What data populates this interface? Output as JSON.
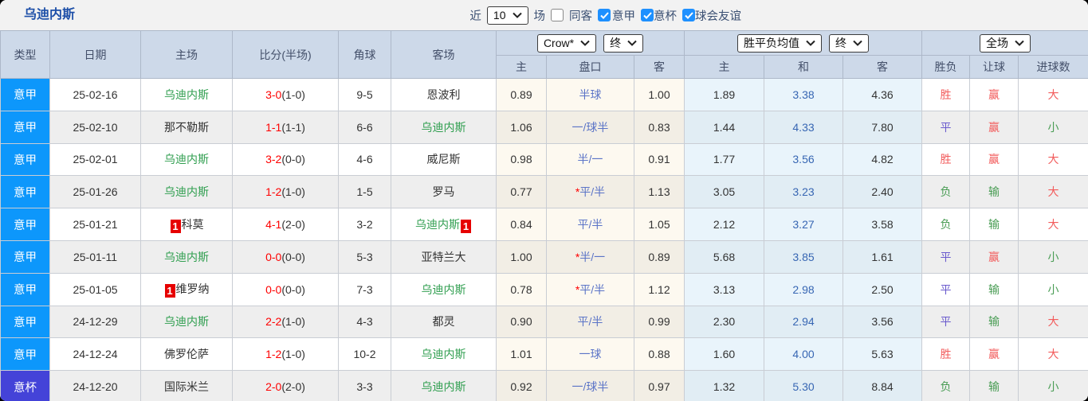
{
  "topbar": {
    "title": "乌迪内斯",
    "filter": {
      "recent_label": "近",
      "recent_value": "10",
      "matches_label": "场",
      "same_away_label": "同客",
      "same_away_checked": false,
      "leagues": [
        {
          "label": "意甲",
          "checked": true
        },
        {
          "label": "意杯",
          "checked": true
        },
        {
          "label": "球会友谊",
          "checked": true
        }
      ]
    }
  },
  "table": {
    "columns": {
      "type": "类型",
      "date": "日期",
      "home": "主场",
      "score": "比分(半场)",
      "corner": "角球",
      "away": "客场"
    },
    "odds_group": {
      "company_select": "Crow*",
      "state_select": "终",
      "sub": [
        "主",
        "盘口",
        "客"
      ]
    },
    "avg_group": {
      "select": "胜平负均值",
      "state_select": "终",
      "sub": [
        "主",
        "和",
        "客"
      ]
    },
    "result_group": {
      "select": "全场",
      "sub": [
        "胜负",
        "让球",
        "进球数"
      ]
    },
    "rows": [
      {
        "type": "意甲",
        "style": "league",
        "date": "25-02-16",
        "home": {
          "name": "乌迪内斯",
          "target": true
        },
        "score": {
          "full": "3-0",
          "half": "(1-0)"
        },
        "corner": "9-5",
        "away": {
          "name": "恩波利",
          "target": false
        },
        "odds": {
          "home": "0.89",
          "handicap": "半球",
          "star": false,
          "away": "1.00"
        },
        "avg": {
          "home": "1.89",
          "draw": "3.38",
          "away": "4.36"
        },
        "results": [
          {
            "text": "胜",
            "tone": "red"
          },
          {
            "text": "赢",
            "tone": "red"
          },
          {
            "text": "大",
            "tone": "red"
          }
        ]
      },
      {
        "type": "意甲",
        "style": "league",
        "date": "25-02-10",
        "home": {
          "name": "那不勒斯",
          "target": false
        },
        "score": {
          "full": "1-1",
          "half": "(1-1)"
        },
        "corner": "6-6",
        "away": {
          "name": "乌迪内斯",
          "target": true
        },
        "odds": {
          "home": "1.06",
          "handicap": "一/球半",
          "star": false,
          "away": "0.83"
        },
        "avg": {
          "home": "1.44",
          "draw": "4.33",
          "away": "7.80"
        },
        "results": [
          {
            "text": "平",
            "tone": "purple"
          },
          {
            "text": "赢",
            "tone": "red"
          },
          {
            "text": "小",
            "tone": "green"
          }
        ]
      },
      {
        "type": "意甲",
        "style": "league",
        "date": "25-02-01",
        "home": {
          "name": "乌迪内斯",
          "target": true
        },
        "score": {
          "full": "3-2",
          "half": "(0-0)"
        },
        "corner": "4-6",
        "away": {
          "name": "威尼斯",
          "target": false
        },
        "odds": {
          "home": "0.98",
          "handicap": "半/一",
          "star": false,
          "away": "0.91"
        },
        "avg": {
          "home": "1.77",
          "draw": "3.56",
          "away": "4.82"
        },
        "results": [
          {
            "text": "胜",
            "tone": "red"
          },
          {
            "text": "赢",
            "tone": "red"
          },
          {
            "text": "大",
            "tone": "red"
          }
        ]
      },
      {
        "type": "意甲",
        "style": "league",
        "date": "25-01-26",
        "home": {
          "name": "乌迪内斯",
          "target": true
        },
        "score": {
          "full": "1-2",
          "half": "(1-0)"
        },
        "corner": "1-5",
        "away": {
          "name": "罗马",
          "target": false
        },
        "odds": {
          "home": "0.77",
          "handicap": "平/半",
          "star": true,
          "away": "1.13"
        },
        "avg": {
          "home": "3.05",
          "draw": "3.23",
          "away": "2.40"
        },
        "results": [
          {
            "text": "负",
            "tone": "green"
          },
          {
            "text": "输",
            "tone": "green"
          },
          {
            "text": "大",
            "tone": "red"
          }
        ]
      },
      {
        "type": "意甲",
        "style": "league",
        "date": "25-01-21",
        "home": {
          "name": "科莫",
          "target": false,
          "badge": "1",
          "badge_pos": "before"
        },
        "score": {
          "full": "4-1",
          "half": "(2-0)"
        },
        "corner": "3-2",
        "away": {
          "name": "乌迪内斯",
          "target": true,
          "badge": "1",
          "badge_pos": "after"
        },
        "odds": {
          "home": "0.84",
          "handicap": "平/半",
          "star": false,
          "away": "1.05"
        },
        "avg": {
          "home": "2.12",
          "draw": "3.27",
          "away": "3.58"
        },
        "results": [
          {
            "text": "负",
            "tone": "green"
          },
          {
            "text": "输",
            "tone": "green"
          },
          {
            "text": "大",
            "tone": "red"
          }
        ]
      },
      {
        "type": "意甲",
        "style": "league",
        "date": "25-01-11",
        "home": {
          "name": "乌迪内斯",
          "target": true
        },
        "score": {
          "full": "0-0",
          "half": "(0-0)"
        },
        "corner": "5-3",
        "away": {
          "name": "亚特兰大",
          "target": false
        },
        "odds": {
          "home": "1.00",
          "handicap": "半/一",
          "star": true,
          "away": "0.89"
        },
        "avg": {
          "home": "5.68",
          "draw": "3.85",
          "away": "1.61"
        },
        "results": [
          {
            "text": "平",
            "tone": "purple"
          },
          {
            "text": "赢",
            "tone": "red"
          },
          {
            "text": "小",
            "tone": "green"
          }
        ]
      },
      {
        "type": "意甲",
        "style": "league",
        "date": "25-01-05",
        "home": {
          "name": "维罗纳",
          "target": false,
          "badge": "1",
          "badge_pos": "before"
        },
        "score": {
          "full": "0-0",
          "half": "(0-0)"
        },
        "corner": "7-3",
        "away": {
          "name": "乌迪内斯",
          "target": true
        },
        "odds": {
          "home": "0.78",
          "handicap": "平/半",
          "star": true,
          "away": "1.12"
        },
        "avg": {
          "home": "3.13",
          "draw": "2.98",
          "away": "2.50"
        },
        "results": [
          {
            "text": "平",
            "tone": "purple"
          },
          {
            "text": "输",
            "tone": "green"
          },
          {
            "text": "小",
            "tone": "green"
          }
        ]
      },
      {
        "type": "意甲",
        "style": "league",
        "date": "24-12-29",
        "home": {
          "name": "乌迪内斯",
          "target": true
        },
        "score": {
          "full": "2-2",
          "half": "(1-0)"
        },
        "corner": "4-3",
        "away": {
          "name": "都灵",
          "target": false
        },
        "odds": {
          "home": "0.90",
          "handicap": "平/半",
          "star": false,
          "away": "0.99"
        },
        "avg": {
          "home": "2.30",
          "draw": "2.94",
          "away": "3.56"
        },
        "results": [
          {
            "text": "平",
            "tone": "purple"
          },
          {
            "text": "输",
            "tone": "green"
          },
          {
            "text": "大",
            "tone": "red"
          }
        ]
      },
      {
        "type": "意甲",
        "style": "league",
        "date": "24-12-24",
        "home": {
          "name": "佛罗伦萨",
          "target": false
        },
        "score": {
          "full": "1-2",
          "half": "(1-0)"
        },
        "corner": "10-2",
        "away": {
          "name": "乌迪内斯",
          "target": true
        },
        "odds": {
          "home": "1.01",
          "handicap": "一球",
          "star": false,
          "away": "0.88"
        },
        "avg": {
          "home": "1.60",
          "draw": "4.00",
          "away": "5.63"
        },
        "results": [
          {
            "text": "胜",
            "tone": "red"
          },
          {
            "text": "赢",
            "tone": "red"
          },
          {
            "text": "大",
            "tone": "red"
          }
        ]
      },
      {
        "type": "意杯",
        "style": "cup",
        "date": "24-12-20",
        "home": {
          "name": "国际米兰",
          "target": false
        },
        "score": {
          "full": "2-0",
          "half": "(2-0)"
        },
        "corner": "3-3",
        "away": {
          "name": "乌迪内斯",
          "target": true
        },
        "odds": {
          "home": "0.92",
          "handicap": "一/球半",
          "star": false,
          "away": "0.97"
        },
        "avg": {
          "home": "1.32",
          "draw": "5.30",
          "away": "8.84"
        },
        "results": [
          {
            "text": "负",
            "tone": "green"
          },
          {
            "text": "输",
            "tone": "green"
          },
          {
            "text": "小",
            "tone": "green"
          }
        ]
      }
    ]
  },
  "colors": {
    "league_badge": "#0d97fb",
    "cup_badge": "#4443d8",
    "target_team_green": "#2f9e4f",
    "score_red": "#fe0000",
    "handicap_blue": "#5b74c7",
    "avg_draw_blue": "#3766b3",
    "result_win_red": "#f25b5b",
    "result_draw_purple": "#6a5acd",
    "result_lose_green": "#4a9d55",
    "checkbox_checked_blue": "#1e90ff",
    "header_bg": "#cdd9e9",
    "title_blue": "#1d4fa8"
  }
}
